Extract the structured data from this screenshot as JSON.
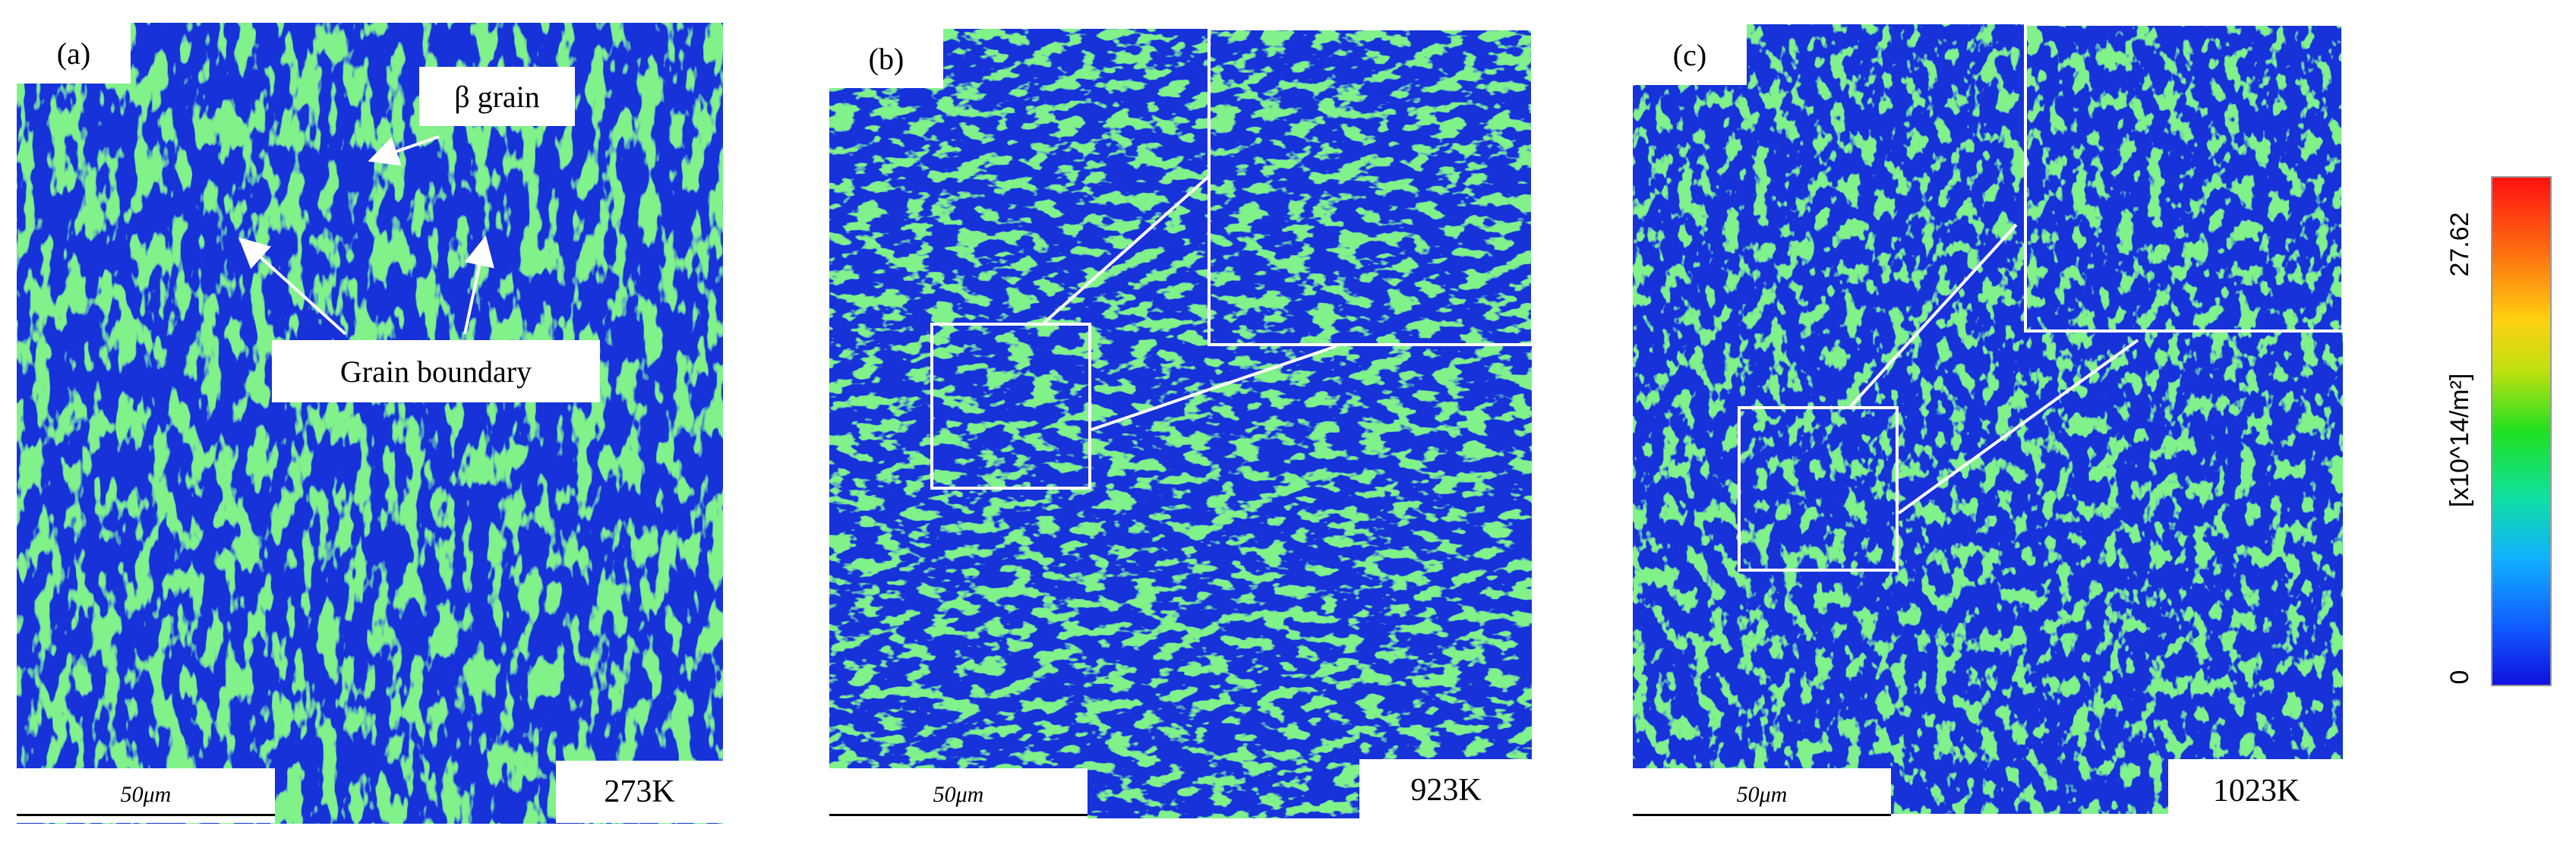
{
  "panels": [
    {
      "letter": "(a)",
      "temperature": "273K",
      "scale": "50μm"
    },
    {
      "letter": "(b)",
      "temperature": "923K",
      "scale": "50μm"
    },
    {
      "letter": "(c)",
      "temperature": "1023K",
      "scale": "50μm"
    }
  ],
  "annotations": {
    "beta_grain": "β grain",
    "grain_boundary": "Grain boundary"
  },
  "colorbar": {
    "max": "27.62",
    "min": "0",
    "unit": "[x10^14/m²]",
    "colors": [
      "#1010e0",
      "#10b0ff",
      "#20e020",
      "#ffd010",
      "#ff1010"
    ]
  },
  "map_colors": {
    "base": "#1430d8",
    "feature": "#3ee63e"
  }
}
